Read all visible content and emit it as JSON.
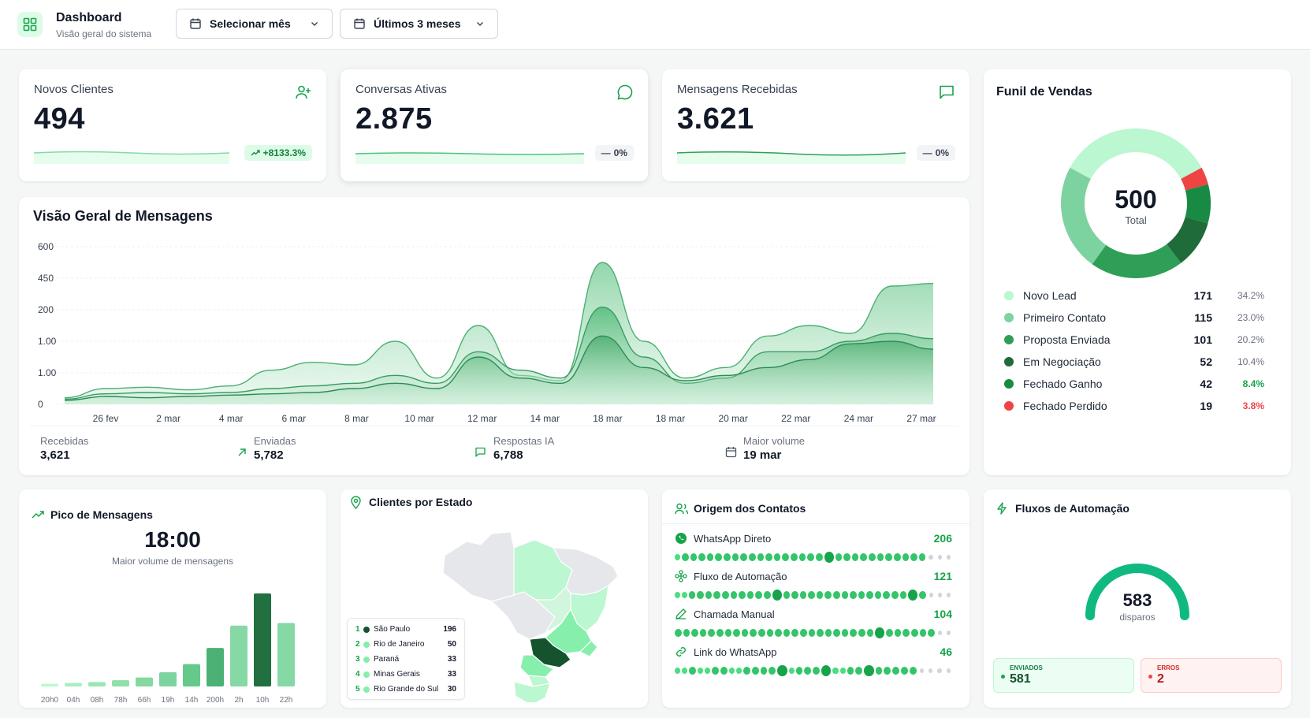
{
  "header": {
    "title": "Dashboard",
    "subtitle": "Visão geral do sistema",
    "month_select": "Selecionar mês",
    "range_select": "Últimos 3 meses"
  },
  "kpis": [
    {
      "title": "Novos Clientes",
      "value": "494",
      "badge": "+8133.3%",
      "icon": "user-plus-icon"
    },
    {
      "title": "Conversas Ativas",
      "value": "2.875",
      "badge": "0%",
      "icon": "chat-bubble-icon"
    },
    {
      "title": "Mensagens Recebidas",
      "value": "3.621",
      "badge": "0%",
      "icon": "message-square-icon"
    }
  ],
  "messages_overview": {
    "title": "Visão Geral de Mensagens",
    "stats": [
      {
        "label": "Recebidas",
        "value": "3,621"
      },
      {
        "label": "Enviadas",
        "value": "5,782"
      },
      {
        "label": "Respostas IA",
        "value": "6,788"
      },
      {
        "label": "Maior volume",
        "value": "19 mar"
      }
    ]
  },
  "chart_data": [
    {
      "type": "area",
      "title": "Visão Geral de Mensagens",
      "y_tick_labels": [
        "600",
        "450",
        "200",
        "1.00",
        "1.00",
        "0"
      ],
      "x_tick_labels": [
        "26 fev",
        "2 mar",
        "4 mar",
        "6 mar",
        "8 mar",
        "10 mar",
        "12 mar",
        "14 mar",
        "18 mar",
        "18 mar",
        "20 mar",
        "22 mar",
        "24 mar",
        "27 mar"
      ],
      "ylim": [
        0,
        600
      ],
      "grid": true,
      "series": [
        {
          "values": [
            25,
            60,
            65,
            55,
            70,
            130,
            160,
            150,
            240,
            100,
            300,
            110,
            90,
            540,
            240,
            100,
            140,
            260,
            300,
            270,
            450,
            460
          ]
        },
        {
          "values": [
            20,
            40,
            45,
            40,
            45,
            60,
            70,
            80,
            110,
            80,
            200,
            130,
            100,
            370,
            180,
            80,
            100,
            200,
            200,
            240,
            270,
            250
          ]
        },
        {
          "values": [
            15,
            30,
            25,
            30,
            35,
            40,
            45,
            60,
            80,
            60,
            180,
            100,
            80,
            260,
            140,
            90,
            110,
            140,
            170,
            230,
            240,
            210
          ]
        }
      ]
    },
    {
      "type": "pie",
      "title": "Funil de Vendas",
      "center_value": "500",
      "center_label": "Total",
      "categories": [
        "Novo Lead",
        "Primeiro Contato",
        "Proposta Enviada",
        "Em Negociação",
        "Fechado Ganho",
        "Fechado Perdido"
      ],
      "values": [
        171,
        115,
        101,
        52,
        42,
        19
      ],
      "percents": [
        "34.2%",
        "23.0%",
        "20.2%",
        "10.4%",
        "8.4%",
        "3.8%"
      ],
      "colors": [
        "#bbf7d0",
        "#7dd3a0",
        "#2f9e57",
        "#1f6b3a",
        "#198a44",
        "#ef4444"
      ]
    },
    {
      "type": "bar",
      "title": "Pico de Mensagens",
      "categories": [
        "20h0",
        "04h",
        "08h",
        "78h",
        "66h",
        "19h",
        "14h",
        "200h",
        "2h",
        "10h",
        "22h"
      ],
      "values": [
        3,
        4,
        5,
        7,
        10,
        16,
        25,
        43,
        68,
        104,
        71
      ],
      "ylim": [
        0,
        110
      ]
    }
  ],
  "funnel": {
    "title": "Funil de Vendas",
    "center_value": "500",
    "center_label": "Total",
    "rows": [
      {
        "name": "Novo Lead",
        "count": "171",
        "pct": "34.2%"
      },
      {
        "name": "Primeiro Contato",
        "count": "115",
        "pct": "23.0%"
      },
      {
        "name": "Proposta Enviada",
        "count": "101",
        "pct": "20.2%"
      },
      {
        "name": "Em Negociação",
        "count": "52",
        "pct": "10.4%"
      },
      {
        "name": "Fechado Ganho",
        "count": "42",
        "pct": "8.4%"
      },
      {
        "name": "Fechado Perdido",
        "count": "19",
        "pct": "3.8%"
      }
    ]
  },
  "peak": {
    "title": "Pico de Mensagens",
    "time": "18:00",
    "caption": "Maior volume de mensagens"
  },
  "states": {
    "title": "Clientes por Estado",
    "rows": [
      {
        "rank": "1",
        "name": "São Paulo",
        "value": "196"
      },
      {
        "rank": "2",
        "name": "Rio de Janeiro",
        "value": "50"
      },
      {
        "rank": "3",
        "name": "Paraná",
        "value": "33"
      },
      {
        "rank": "4",
        "name": "Minas Gerais",
        "value": "33"
      },
      {
        "rank": "5",
        "name": "Rio Grande do Sul",
        "value": "30"
      }
    ]
  },
  "origins": {
    "title": "Origem dos Contatos",
    "rows": [
      {
        "name": "WhatsApp Direto",
        "value": "206",
        "icon": "whatsapp-icon"
      },
      {
        "name": "Fluxo de Automação",
        "value": "121",
        "icon": "workflow-icon"
      },
      {
        "name": "Chamada Manual",
        "value": "104",
        "icon": "pencil-icon"
      },
      {
        "name": "Link do WhatsApp",
        "value": "46",
        "icon": "link-icon"
      }
    ]
  },
  "flows": {
    "title": "Fluxos de Automação",
    "value": "583",
    "caption": "disparos",
    "sent_label": "ENVIADOS",
    "sent_value": "581",
    "error_label": "ERROS",
    "error_value": "2"
  },
  "colors": {
    "accent": "#16a34a",
    "accent_light": "#dcfce7",
    "error": "#ef4444",
    "gauge": "#10b981"
  }
}
